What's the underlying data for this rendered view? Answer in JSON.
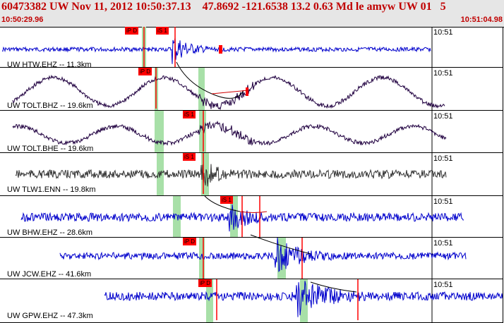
{
  "header": {
    "title": "60473382 UW Nov 11, 2012 10:50:37.13    47.8692 -121.6538 13.2 0.63 Md le amyw UW 01   5",
    "start_time": "10:50:29.96",
    "end_time": "10:51:04.98"
  },
  "colors": {
    "header_text": "#c00000",
    "pick": "#ff0000",
    "window": "#a8e0a8",
    "trace_blue": "#0000cc",
    "trace_navy": "#200040",
    "trace_gray": "#333333"
  },
  "channels": [
    {
      "label": "UW HTW.EHZ -- 11.3km",
      "time_tick": "10:51",
      "picks": [
        "iP D",
        "iS 1"
      ],
      "trace_color": "trace_blue"
    },
    {
      "label": "UW TOLT.BHZ -- 19.6km",
      "time_tick": "10:51",
      "picks": [
        "iP D"
      ],
      "trace_color": "trace_navy"
    },
    {
      "label": "UW TOLT.BHE -- 19.6km",
      "time_tick": "10:51",
      "picks": [
        "iS 1"
      ],
      "trace_color": "trace_navy"
    },
    {
      "label": "UW TLW1.ENN -- 19.8km",
      "time_tick": "10:51",
      "picks": [
        "iS 1"
      ],
      "trace_color": "trace_gray"
    },
    {
      "label": "UW BHW.EHZ -- 28.6km",
      "time_tick": "10:51",
      "picks": [
        "iS 1"
      ],
      "trace_color": "trace_blue"
    },
    {
      "label": "UW JCW.EHZ -- 41.6km",
      "time_tick": "10:51",
      "picks": [
        "iP D"
      ],
      "trace_color": "trace_blue"
    },
    {
      "label": "UW GPW.EHZ -- 47.3km",
      "time_tick": "10:51",
      "picks": [
        "iP D"
      ],
      "trace_color": "trace_blue"
    }
  ]
}
